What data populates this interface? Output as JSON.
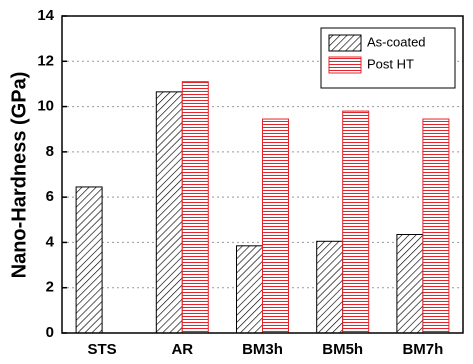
{
  "chart_data": {
    "type": "bar",
    "y_label": "Nano-Hardness (GPa)",
    "categories": [
      "STS",
      "AR",
      "BM3h",
      "BM5h",
      "BM7h"
    ],
    "series": [
      {
        "name": "As-coated",
        "color": "#000000",
        "hatch": "diagonal",
        "values": [
          6.45,
          10.65,
          3.85,
          4.05,
          4.35
        ]
      },
      {
        "name": "Post HT",
        "color": "#e3242b",
        "hatch": "horizontal",
        "values": [
          null,
          11.1,
          9.45,
          9.8,
          9.45
        ]
      }
    ],
    "ylim": [
      0,
      14
    ],
    "yticks": [
      0,
      2,
      4,
      6,
      8,
      10,
      12,
      14
    ],
    "grid": true,
    "legend": "upper right"
  }
}
